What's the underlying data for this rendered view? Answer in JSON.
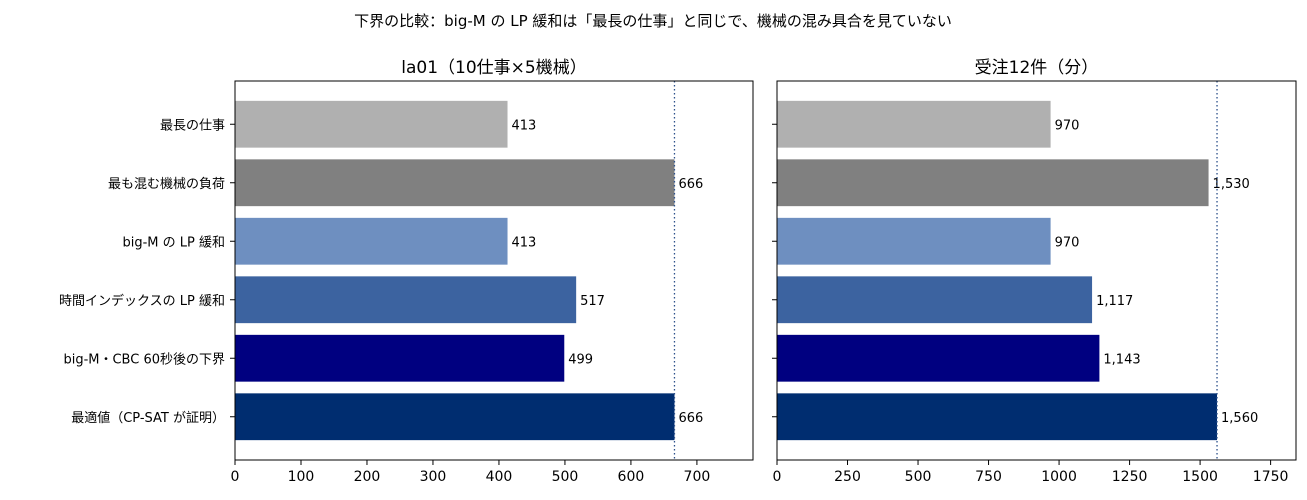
{
  "figure": {
    "suptitle": "下界の比較：big-M の LP 緩和は「最長の仕事」と同じで、機械の混み具合を見ていない"
  },
  "chart_data": [
    {
      "type": "bar",
      "orientation": "horizontal",
      "title": "la01（10仕事×5機械）",
      "categories": [
        "最長の仕事",
        "最も混む機械の負荷",
        "big-M の LP 緩和",
        "時間インデックスの LP 緩和",
        "big-M・CBC 60秒後の下界",
        "最適値（CP-SAT が証明）"
      ],
      "values": [
        413,
        666,
        413,
        517,
        499,
        666
      ],
      "value_labels": [
        "413",
        "666",
        "413",
        "517",
        "499",
        "666"
      ],
      "colors": [
        "#b0b0b0",
        "#808080",
        "#6e8fc0",
        "#3c63a0",
        "#000080",
        "#002d70"
      ],
      "xlim": [
        0,
        785
      ],
      "xticks": [
        0,
        100,
        200,
        300,
        400,
        500,
        600,
        700
      ],
      "xtick_labels": [
        "0",
        "100",
        "200",
        "300",
        "400",
        "500",
        "600",
        "700"
      ],
      "reference_line": 666,
      "reference_color": "#2b4f8a",
      "grid": false,
      "show_category_labels": true
    },
    {
      "type": "bar",
      "orientation": "horizontal",
      "title": "受注12件（分）",
      "categories": [
        "最長の仕事",
        "最も混む機械の負荷",
        "big-M の LP 緩和",
        "時間インデックスの LP 緩和",
        "big-M・CBC 60秒後の下界",
        "最適値（CP-SAT が証明）"
      ],
      "values": [
        970,
        1530,
        970,
        1117,
        1143,
        1560
      ],
      "value_labels": [
        "970",
        "1,530",
        "970",
        "1,117",
        "1,143",
        "1,560"
      ],
      "colors": [
        "#b0b0b0",
        "#808080",
        "#6e8fc0",
        "#3c63a0",
        "#000080",
        "#002d70"
      ],
      "xlim": [
        0,
        1840
      ],
      "xticks": [
        0,
        250,
        500,
        750,
        1000,
        1250,
        1500,
        1750
      ],
      "xtick_labels": [
        "0",
        "250",
        "500",
        "750",
        "1000",
        "1250",
        "1500",
        "1750"
      ],
      "reference_line": 1560,
      "reference_color": "#2b4f8a",
      "grid": false,
      "show_category_labels": false
    }
  ]
}
